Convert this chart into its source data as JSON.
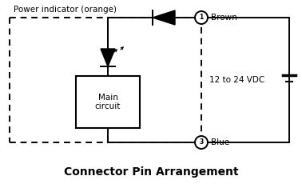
{
  "title": "Connector Pin Arrangement",
  "title_fontsize": 10,
  "bg_color": "#ffffff",
  "line_color": "#000000",
  "label_power": "Power indicator (orange)",
  "label_brown": "Brown",
  "label_blue": "Blue",
  "label_vdc": "12 to 24 VDC",
  "label_main": "Main\ncircuit",
  "pin1_label": "1",
  "pin3_label": "3"
}
